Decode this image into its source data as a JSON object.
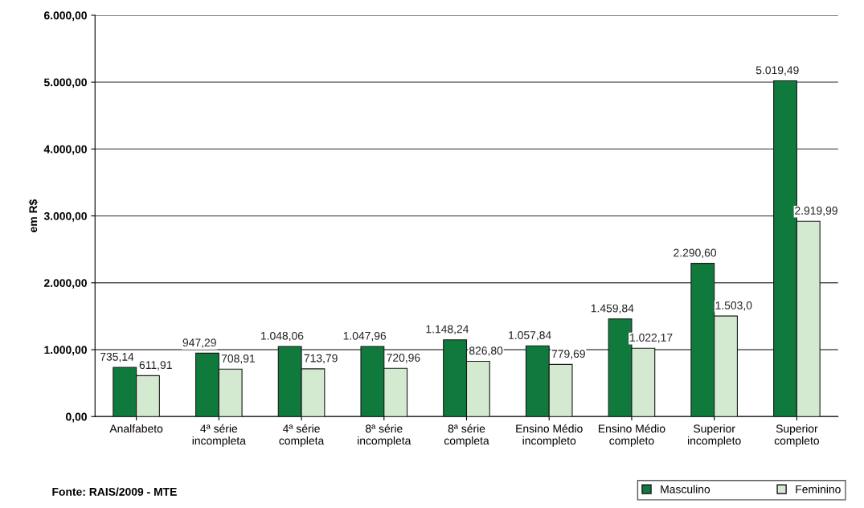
{
  "chart_data": {
    "type": "bar",
    "ylabel": "em R$",
    "categories": [
      "Analfabeto",
      "4ª série\nincompleta",
      "4ª série\ncompleta",
      "8ª série\nincompleta",
      "8ª série\ncompleta",
      "Ensino Médio\nincompleto",
      "Ensino Médio\ncompleto",
      "Superior\nincompleto",
      "Superior\ncompleto"
    ],
    "series": [
      {
        "name": "Masculino",
        "color": "#0f7a3c",
        "values": [
          735.14,
          947.29,
          1048.06,
          1047.96,
          1148.24,
          1057.84,
          1459.84,
          2290.6,
          5019.49
        ],
        "value_labels": [
          "735,14",
          "947,29",
          "1.048,06",
          "1.047,96",
          "1.148,24",
          "1.057,84",
          "1.459,84",
          "2.290,60",
          "5.019,49"
        ]
      },
      {
        "name": "Feminino",
        "color": "#d3ead0",
        "values": [
          611.91,
          708.91,
          713.79,
          720.96,
          826.8,
          779.69,
          1022.17,
          1503.0,
          2919.99
        ],
        "value_labels": [
          "611,91",
          "708,91",
          "713,79",
          "720,96",
          "826,80",
          "779,69",
          "1.022,17",
          "1.503,0",
          "2.919,99"
        ]
      }
    ],
    "ylim": [
      0,
      6000
    ],
    "yticks": [
      {
        "value": 0,
        "label": "0,00"
      },
      {
        "value": 1000,
        "label": "1.000,00"
      },
      {
        "value": 2000,
        "label": "2.000,00"
      },
      {
        "value": 3000,
        "label": "3.000,00"
      },
      {
        "value": 4000,
        "label": "4.000,00"
      },
      {
        "value": 5000,
        "label": "5.000,00"
      },
      {
        "value": 6000,
        "label": "6.000,00"
      }
    ],
    "grid": "y",
    "legend": "bottom right",
    "annotations": [
      "Fonte: RAIS/2009 - MTE"
    ]
  }
}
